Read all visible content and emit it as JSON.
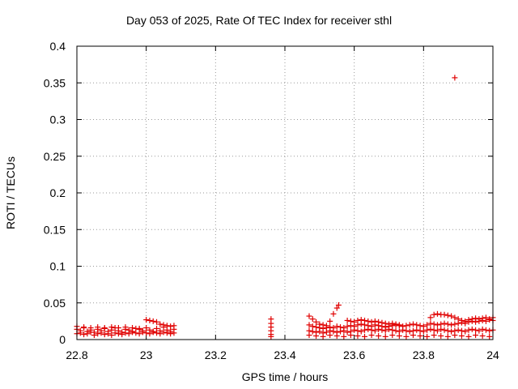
{
  "chart_data": {
    "type": "scatter",
    "title": "Day 053 of 2025, Rate Of TEC Index for receiver sthl",
    "xlabel": "GPS time / hours",
    "ylabel": "ROTI / TECUs",
    "xlim": [
      22.8,
      24.0
    ],
    "ylim": [
      0,
      0.4
    ],
    "xticks": [
      "22.8",
      "23",
      "23.2",
      "23.4",
      "23.6",
      "23.8",
      "24"
    ],
    "yticks": [
      "0",
      "0.05",
      "0.1",
      "0.15",
      "0.2",
      "0.25",
      "0.3",
      "0.35",
      "0.4"
    ],
    "grid": true,
    "marker": "+",
    "color": "#e00000",
    "series": [
      {
        "name": "",
        "points": [
          [
            22.8,
            0.014
          ],
          [
            22.81,
            0.012
          ],
          [
            22.82,
            0.016
          ],
          [
            22.83,
            0.011
          ],
          [
            22.84,
            0.013
          ],
          [
            22.85,
            0.01
          ],
          [
            22.86,
            0.014
          ],
          [
            22.87,
            0.012
          ],
          [
            22.88,
            0.015
          ],
          [
            22.89,
            0.011
          ],
          [
            22.9,
            0.013
          ],
          [
            22.91,
            0.016
          ],
          [
            22.92,
            0.012
          ],
          [
            22.93,
            0.01
          ],
          [
            22.94,
            0.014
          ],
          [
            22.95,
            0.013
          ],
          [
            22.96,
            0.011
          ],
          [
            22.97,
            0.015
          ],
          [
            22.98,
            0.014
          ],
          [
            22.99,
            0.012
          ],
          [
            23.0,
            0.016
          ],
          [
            23.01,
            0.013
          ],
          [
            23.02,
            0.011
          ],
          [
            23.03,
            0.015
          ],
          [
            23.04,
            0.012
          ],
          [
            23.05,
            0.017
          ],
          [
            23.06,
            0.013
          ],
          [
            23.07,
            0.011
          ],
          [
            23.08,
            0.014
          ],
          [
            22.8,
            0.008
          ],
          [
            22.81,
            0.009
          ],
          [
            22.82,
            0.007
          ],
          [
            22.83,
            0.008
          ],
          [
            22.84,
            0.01
          ],
          [
            22.85,
            0.006
          ],
          [
            22.86,
            0.008
          ],
          [
            22.87,
            0.009
          ],
          [
            22.88,
            0.007
          ],
          [
            22.89,
            0.008
          ],
          [
            22.9,
            0.006
          ],
          [
            22.91,
            0.009
          ],
          [
            22.92,
            0.008
          ],
          [
            22.93,
            0.007
          ],
          [
            22.94,
            0.009
          ],
          [
            22.95,
            0.008
          ],
          [
            22.96,
            0.01
          ],
          [
            22.97,
            0.009
          ],
          [
            22.98,
            0.008
          ],
          [
            22.99,
            0.01
          ],
          [
            23.0,
            0.009
          ],
          [
            23.01,
            0.008
          ],
          [
            23.02,
            0.01
          ],
          [
            23.03,
            0.009
          ],
          [
            23.04,
            0.008
          ],
          [
            23.05,
            0.01
          ],
          [
            23.06,
            0.009
          ],
          [
            23.07,
            0.008
          ],
          [
            23.08,
            0.009
          ],
          [
            22.8,
            0.018
          ],
          [
            22.82,
            0.017
          ],
          [
            22.84,
            0.016
          ],
          [
            22.86,
            0.017
          ],
          [
            22.88,
            0.016
          ],
          [
            22.9,
            0.017
          ],
          [
            22.92,
            0.016
          ],
          [
            22.94,
            0.017
          ],
          [
            22.96,
            0.016
          ],
          [
            22.98,
            0.015
          ],
          [
            23.0,
            0.027
          ],
          [
            23.01,
            0.026
          ],
          [
            23.02,
            0.025
          ],
          [
            23.03,
            0.024
          ],
          [
            23.04,
            0.021
          ],
          [
            23.05,
            0.02
          ],
          [
            23.06,
            0.019
          ],
          [
            23.07,
            0.018
          ],
          [
            23.08,
            0.019
          ],
          [
            23.36,
            0.028
          ],
          [
            23.36,
            0.022
          ],
          [
            23.36,
            0.017
          ],
          [
            23.36,
            0.012
          ],
          [
            23.36,
            0.007
          ],
          [
            23.36,
            0.004
          ],
          [
            23.47,
            0.032
          ],
          [
            23.48,
            0.028
          ],
          [
            23.49,
            0.024
          ],
          [
            23.5,
            0.021
          ],
          [
            23.51,
            0.02
          ],
          [
            23.52,
            0.019
          ],
          [
            23.53,
            0.025
          ],
          [
            23.54,
            0.035
          ],
          [
            23.55,
            0.043
          ],
          [
            23.555,
            0.047
          ],
          [
            23.47,
            0.02
          ],
          [
            23.48,
            0.018
          ],
          [
            23.49,
            0.017
          ],
          [
            23.5,
            0.016
          ],
          [
            23.51,
            0.015
          ],
          [
            23.52,
            0.016
          ],
          [
            23.53,
            0.017
          ],
          [
            23.54,
            0.016
          ],
          [
            23.55,
            0.018
          ],
          [
            23.56,
            0.017
          ],
          [
            23.57,
            0.016
          ],
          [
            23.58,
            0.018
          ],
          [
            23.59,
            0.019
          ],
          [
            23.6,
            0.018
          ],
          [
            23.61,
            0.02
          ],
          [
            23.62,
            0.021
          ],
          [
            23.63,
            0.02
          ],
          [
            23.64,
            0.019
          ],
          [
            23.65,
            0.018
          ],
          [
            23.66,
            0.02
          ],
          [
            23.67,
            0.019
          ],
          [
            23.68,
            0.018
          ],
          [
            23.69,
            0.017
          ],
          [
            23.7,
            0.018
          ],
          [
            23.71,
            0.019
          ],
          [
            23.72,
            0.02
          ],
          [
            23.73,
            0.019
          ],
          [
            23.74,
            0.018
          ],
          [
            23.75,
            0.019
          ],
          [
            23.76,
            0.02
          ],
          [
            23.77,
            0.021
          ],
          [
            23.78,
            0.02
          ],
          [
            23.79,
            0.019
          ],
          [
            23.8,
            0.018
          ],
          [
            23.81,
            0.02
          ],
          [
            23.82,
            0.022
          ],
          [
            23.83,
            0.021
          ],
          [
            23.84,
            0.02
          ],
          [
            23.85,
            0.021
          ],
          [
            23.86,
            0.022
          ],
          [
            23.87,
            0.021
          ],
          [
            23.88,
            0.02
          ],
          [
            23.89,
            0.021
          ],
          [
            23.9,
            0.022
          ],
          [
            23.91,
            0.023
          ],
          [
            23.92,
            0.022
          ],
          [
            23.93,
            0.024
          ],
          [
            23.94,
            0.025
          ],
          [
            23.95,
            0.024
          ],
          [
            23.96,
            0.025
          ],
          [
            23.97,
            0.026
          ],
          [
            23.98,
            0.025
          ],
          [
            23.99,
            0.027
          ],
          [
            24.0,
            0.026
          ],
          [
            23.47,
            0.012
          ],
          [
            23.48,
            0.011
          ],
          [
            23.49,
            0.01
          ],
          [
            23.5,
            0.011
          ],
          [
            23.51,
            0.009
          ],
          [
            23.52,
            0.01
          ],
          [
            23.53,
            0.012
          ],
          [
            23.54,
            0.011
          ],
          [
            23.55,
            0.01
          ],
          [
            23.56,
            0.011
          ],
          [
            23.57,
            0.012
          ],
          [
            23.58,
            0.01
          ],
          [
            23.59,
            0.011
          ],
          [
            23.6,
            0.013
          ],
          [
            23.61,
            0.012
          ],
          [
            23.62,
            0.011
          ],
          [
            23.63,
            0.013
          ],
          [
            23.64,
            0.014
          ],
          [
            23.65,
            0.013
          ],
          [
            23.66,
            0.012
          ],
          [
            23.67,
            0.014
          ],
          [
            23.68,
            0.013
          ],
          [
            23.69,
            0.012
          ],
          [
            23.7,
            0.014
          ],
          [
            23.71,
            0.013
          ],
          [
            23.72,
            0.012
          ],
          [
            23.73,
            0.011
          ],
          [
            23.74,
            0.013
          ],
          [
            23.75,
            0.012
          ],
          [
            23.76,
            0.011
          ],
          [
            23.77,
            0.012
          ],
          [
            23.78,
            0.013
          ],
          [
            23.79,
            0.012
          ],
          [
            23.8,
            0.011
          ],
          [
            23.81,
            0.013
          ],
          [
            23.82,
            0.014
          ],
          [
            23.83,
            0.013
          ],
          [
            23.84,
            0.012
          ],
          [
            23.85,
            0.014
          ],
          [
            23.86,
            0.013
          ],
          [
            23.87,
            0.012
          ],
          [
            23.88,
            0.011
          ],
          [
            23.89,
            0.012
          ],
          [
            23.9,
            0.013
          ],
          [
            23.91,
            0.012
          ],
          [
            23.92,
            0.011
          ],
          [
            23.93,
            0.013
          ],
          [
            23.94,
            0.014
          ],
          [
            23.95,
            0.013
          ],
          [
            23.96,
            0.012
          ],
          [
            23.97,
            0.014
          ],
          [
            23.98,
            0.013
          ],
          [
            23.99,
            0.012
          ],
          [
            24.0,
            0.013
          ],
          [
            23.47,
            0.006
          ],
          [
            23.49,
            0.005
          ],
          [
            23.51,
            0.004
          ],
          [
            23.53,
            0.006
          ],
          [
            23.55,
            0.005
          ],
          [
            23.57,
            0.004
          ],
          [
            23.59,
            0.006
          ],
          [
            23.61,
            0.005
          ],
          [
            23.63,
            0.004
          ],
          [
            23.65,
            0.006
          ],
          [
            23.67,
            0.005
          ],
          [
            23.69,
            0.004
          ],
          [
            23.71,
            0.006
          ],
          [
            23.73,
            0.005
          ],
          [
            23.75,
            0.004
          ],
          [
            23.77,
            0.006
          ],
          [
            23.79,
            0.005
          ],
          [
            23.81,
            0.004
          ],
          [
            23.83,
            0.006
          ],
          [
            23.85,
            0.005
          ],
          [
            23.87,
            0.004
          ],
          [
            23.89,
            0.006
          ],
          [
            23.91,
            0.005
          ],
          [
            23.93,
            0.004
          ],
          [
            23.95,
            0.006
          ],
          [
            23.97,
            0.005
          ],
          [
            23.99,
            0.004
          ],
          [
            23.58,
            0.026
          ],
          [
            23.59,
            0.025
          ],
          [
            23.6,
            0.024
          ],
          [
            23.61,
            0.026
          ],
          [
            23.62,
            0.027
          ],
          [
            23.63,
            0.026
          ],
          [
            23.64,
            0.025
          ],
          [
            23.65,
            0.024
          ],
          [
            23.66,
            0.025
          ],
          [
            23.67,
            0.024
          ],
          [
            23.68,
            0.023
          ],
          [
            23.69,
            0.022
          ],
          [
            23.7,
            0.021
          ],
          [
            23.71,
            0.022
          ],
          [
            23.72,
            0.021
          ],
          [
            23.73,
            0.02
          ],
          [
            23.82,
            0.03
          ],
          [
            23.83,
            0.034
          ],
          [
            23.84,
            0.035
          ],
          [
            23.85,
            0.034
          ],
          [
            23.86,
            0.034
          ],
          [
            23.87,
            0.033
          ],
          [
            23.88,
            0.032
          ],
          [
            23.89,
            0.03
          ],
          [
            23.9,
            0.028
          ],
          [
            23.91,
            0.026
          ],
          [
            23.92,
            0.025
          ],
          [
            23.93,
            0.027
          ],
          [
            23.94,
            0.028
          ],
          [
            23.95,
            0.029
          ],
          [
            23.96,
            0.028
          ],
          [
            23.97,
            0.029
          ],
          [
            23.98,
            0.03
          ],
          [
            23.99,
            0.028
          ],
          [
            24.0,
            0.03
          ],
          [
            23.89,
            0.357
          ]
        ]
      }
    ]
  }
}
